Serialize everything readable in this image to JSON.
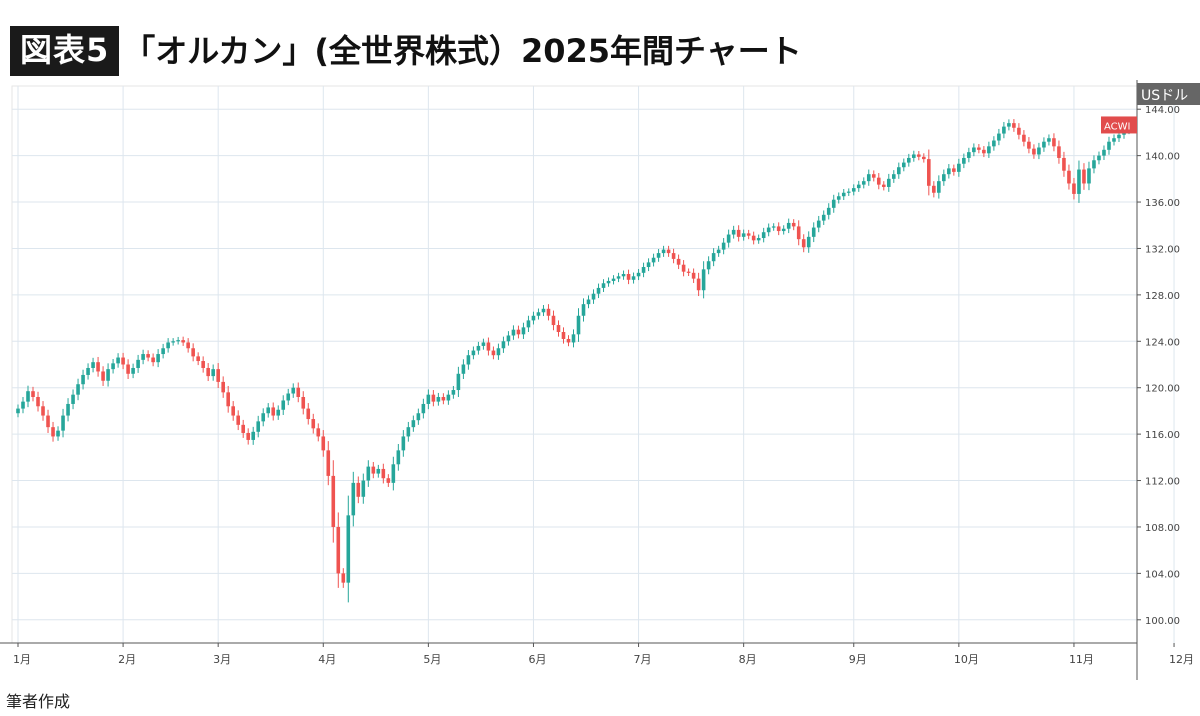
{
  "figure_label": "図表5",
  "title": "「オルカン」(全世界株式）2025年間チャート",
  "caption": "筆者作成",
  "chart_data": {
    "type": "candlestick",
    "ticker_label": "ACWI",
    "last_value": 142.6,
    "unit_label": "USドル",
    "ylim": [
      98.0,
      146.0
    ],
    "y_ticks": [
      "100.00",
      "104.00",
      "108.00",
      "112.00",
      "116.00",
      "120.00",
      "124.00",
      "128.00",
      "132.00",
      "136.00",
      "140.00",
      "144.00"
    ],
    "x_ticks": [
      "1月",
      "2月",
      "3月",
      "4月",
      "5月",
      "6月",
      "7月",
      "8月",
      "9月",
      "10月",
      "11月",
      "12月"
    ],
    "month_start_index": [
      0,
      21,
      40,
      61,
      82,
      103,
      124,
      145,
      167,
      188,
      211,
      231
    ],
    "grid": true,
    "colors": {
      "up": "#26a69a",
      "down": "#ef5350",
      "grid": "#dde6ee",
      "axis": "#666666",
      "label_bg": "#e14c4c"
    },
    "closes": [
      118.2,
      118.8,
      119.7,
      119.2,
      118.4,
      117.6,
      116.6,
      115.8,
      116.3,
      117.6,
      118.6,
      119.4,
      120.3,
      121.1,
      121.7,
      122.2,
      121.4,
      120.6,
      121.6,
      122.1,
      122.6,
      122.0,
      121.2,
      121.7,
      122.4,
      122.9,
      122.6,
      122.2,
      122.9,
      123.4,
      123.9,
      124.0,
      124.1,
      123.9,
      123.4,
      122.7,
      122.3,
      121.7,
      121.0,
      121.6,
      120.5,
      119.6,
      118.4,
      117.6,
      116.8,
      116.1,
      115.5,
      116.2,
      117.1,
      117.8,
      118.3,
      117.6,
      118.1,
      118.9,
      119.5,
      120.0,
      119.2,
      118.2,
      117.3,
      116.5,
      115.8,
      114.6,
      112.4,
      108.0,
      104.0,
      103.2,
      109.0,
      111.8,
      110.6,
      112.0,
      113.2,
      112.6,
      113.0,
      112.2,
      111.8,
      113.4,
      114.6,
      115.8,
      116.6,
      117.2,
      117.8,
      118.6,
      119.4,
      118.8,
      119.2,
      118.9,
      119.4,
      119.8,
      121.2,
      122.0,
      122.8,
      123.2,
      123.6,
      123.9,
      123.2,
      122.8,
      123.4,
      124.0,
      124.5,
      125.0,
      124.6,
      125.2,
      125.8,
      126.2,
      126.5,
      126.8,
      126.2,
      125.4,
      124.8,
      124.2,
      123.9,
      124.6,
      126.2,
      127.2,
      127.6,
      128.1,
      128.6,
      129.0,
      129.2,
      129.4,
      129.6,
      129.8,
      129.3,
      129.6,
      129.9,
      130.4,
      130.8,
      131.2,
      131.6,
      131.9,
      131.6,
      131.1,
      130.6,
      130.0,
      129.9,
      129.4,
      128.4,
      130.2,
      130.9,
      131.6,
      131.9,
      132.5,
      133.2,
      133.6,
      133.0,
      133.3,
      133.1,
      132.7,
      132.9,
      133.4,
      133.8,
      133.9,
      133.5,
      133.7,
      134.2,
      133.9,
      132.8,
      132.1,
      133.0,
      133.8,
      134.4,
      134.9,
      135.5,
      136.2,
      136.5,
      136.8,
      136.9,
      137.2,
      137.5,
      137.8,
      138.4,
      138.1,
      137.5,
      137.3,
      138.0,
      138.4,
      139.0,
      139.4,
      139.8,
      140.1,
      139.9,
      139.7,
      137.4,
      136.8,
      137.8,
      138.4,
      138.9,
      138.6,
      139.3,
      139.8,
      140.3,
      140.7,
      140.5,
      140.2,
      140.8,
      141.3,
      141.9,
      142.5,
      142.8,
      142.4,
      141.8,
      141.2,
      140.6,
      140.1,
      140.7,
      141.2,
      141.5,
      140.8,
      139.8,
      138.7,
      137.6,
      136.7,
      138.8,
      137.6,
      138.9,
      139.6,
      140.0,
      140.5,
      141.2,
      141.5,
      141.8,
      142.2,
      142.6
    ]
  }
}
